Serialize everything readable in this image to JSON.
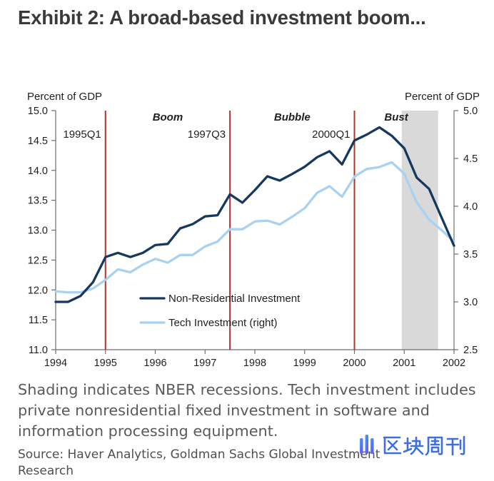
{
  "chart_data": {
    "type": "line",
    "title": "Exhibit 2: A broad-based investment boom...",
    "xlim": [
      1994,
      2002
    ],
    "x_ticks": [
      "1994",
      "1995",
      "1996",
      "1997",
      "1998",
      "1999",
      "2000",
      "2001",
      "2002"
    ],
    "left_axis": {
      "label": "Percent of GDP",
      "ylim": [
        11.0,
        15.0
      ],
      "ticks": [
        "11.0",
        "11.5",
        "12.0",
        "12.5",
        "13.0",
        "13.5",
        "14.0",
        "14.5",
        "15.0"
      ]
    },
    "right_axis": {
      "label": "Percent of GDP",
      "ylim": [
        2.5,
        5.0
      ],
      "ticks": [
        "2.5",
        "3.0",
        "3.5",
        "4.0",
        "4.5",
        "5.0"
      ]
    },
    "x": [
      1994.0,
      1994.25,
      1994.5,
      1994.75,
      1995.0,
      1995.25,
      1995.5,
      1995.75,
      1996.0,
      1996.25,
      1996.5,
      1996.75,
      1997.0,
      1997.25,
      1997.5,
      1997.75,
      1998.0,
      1998.25,
      1998.5,
      1998.75,
      1999.0,
      1999.25,
      1999.5,
      1999.75,
      2000.0,
      2000.25,
      2000.5,
      2000.75,
      2001.0,
      2001.25,
      2001.5,
      2001.75,
      2002.0
    ],
    "series": [
      {
        "name": "Non-Residential Investment",
        "axis": "left",
        "color": "#16385f",
        "values": [
          11.8,
          11.8,
          11.9,
          12.13,
          12.55,
          12.62,
          12.55,
          12.62,
          12.75,
          12.77,
          13.03,
          13.1,
          13.23,
          13.25,
          13.6,
          13.46,
          13.67,
          13.9,
          13.83,
          13.94,
          14.06,
          14.22,
          14.32,
          14.1,
          14.5,
          14.6,
          14.72,
          14.58,
          14.37,
          13.88,
          13.69,
          13.21,
          12.74
        ]
      },
      {
        "name": "Tech Investment (right)",
        "axis": "right",
        "color": "#a9d1f1",
        "values": [
          3.11,
          3.1,
          3.1,
          3.14,
          3.23,
          3.34,
          3.31,
          3.39,
          3.45,
          3.41,
          3.49,
          3.49,
          3.58,
          3.63,
          3.76,
          3.76,
          3.84,
          3.85,
          3.81,
          3.89,
          3.98,
          4.14,
          4.21,
          4.1,
          4.31,
          4.39,
          4.41,
          4.46,
          4.34,
          4.04,
          3.86,
          3.75,
          3.63
        ]
      }
    ],
    "events": [
      {
        "x": 1995.0,
        "label": "1995Q1"
      },
      {
        "x": 1997.5,
        "label": "1997Q3"
      },
      {
        "x": 2000.0,
        "label": "2000Q1"
      }
    ],
    "phases": [
      {
        "label": "Boom",
        "from": 1995.0,
        "to": 1997.5
      },
      {
        "label": "Bubble",
        "from": 1997.5,
        "to": 2000.0
      },
      {
        "label": "Bust",
        "from": 2000.0,
        "to": 2001.68
      }
    ],
    "recessions": [
      {
        "from": 2000.95,
        "to": 2001.68
      }
    ],
    "grid": false,
    "colors": {
      "event_line": "#b3322a",
      "recession": "#d9d9d9",
      "axis": "#6e6e6e"
    }
  },
  "caption": {
    "lines": [
      "Shading indicates NBER recessions. Tech investment includes",
      "private nonresidential fixed investment in software and",
      "information processing equipment."
    ]
  },
  "source": {
    "lines": [
      "Source: Haver Analytics, Goldman Sachs Global Investment",
      "Research"
    ]
  },
  "watermark": {
    "text": "区块周刊",
    "icon": "bars-logo-icon"
  }
}
